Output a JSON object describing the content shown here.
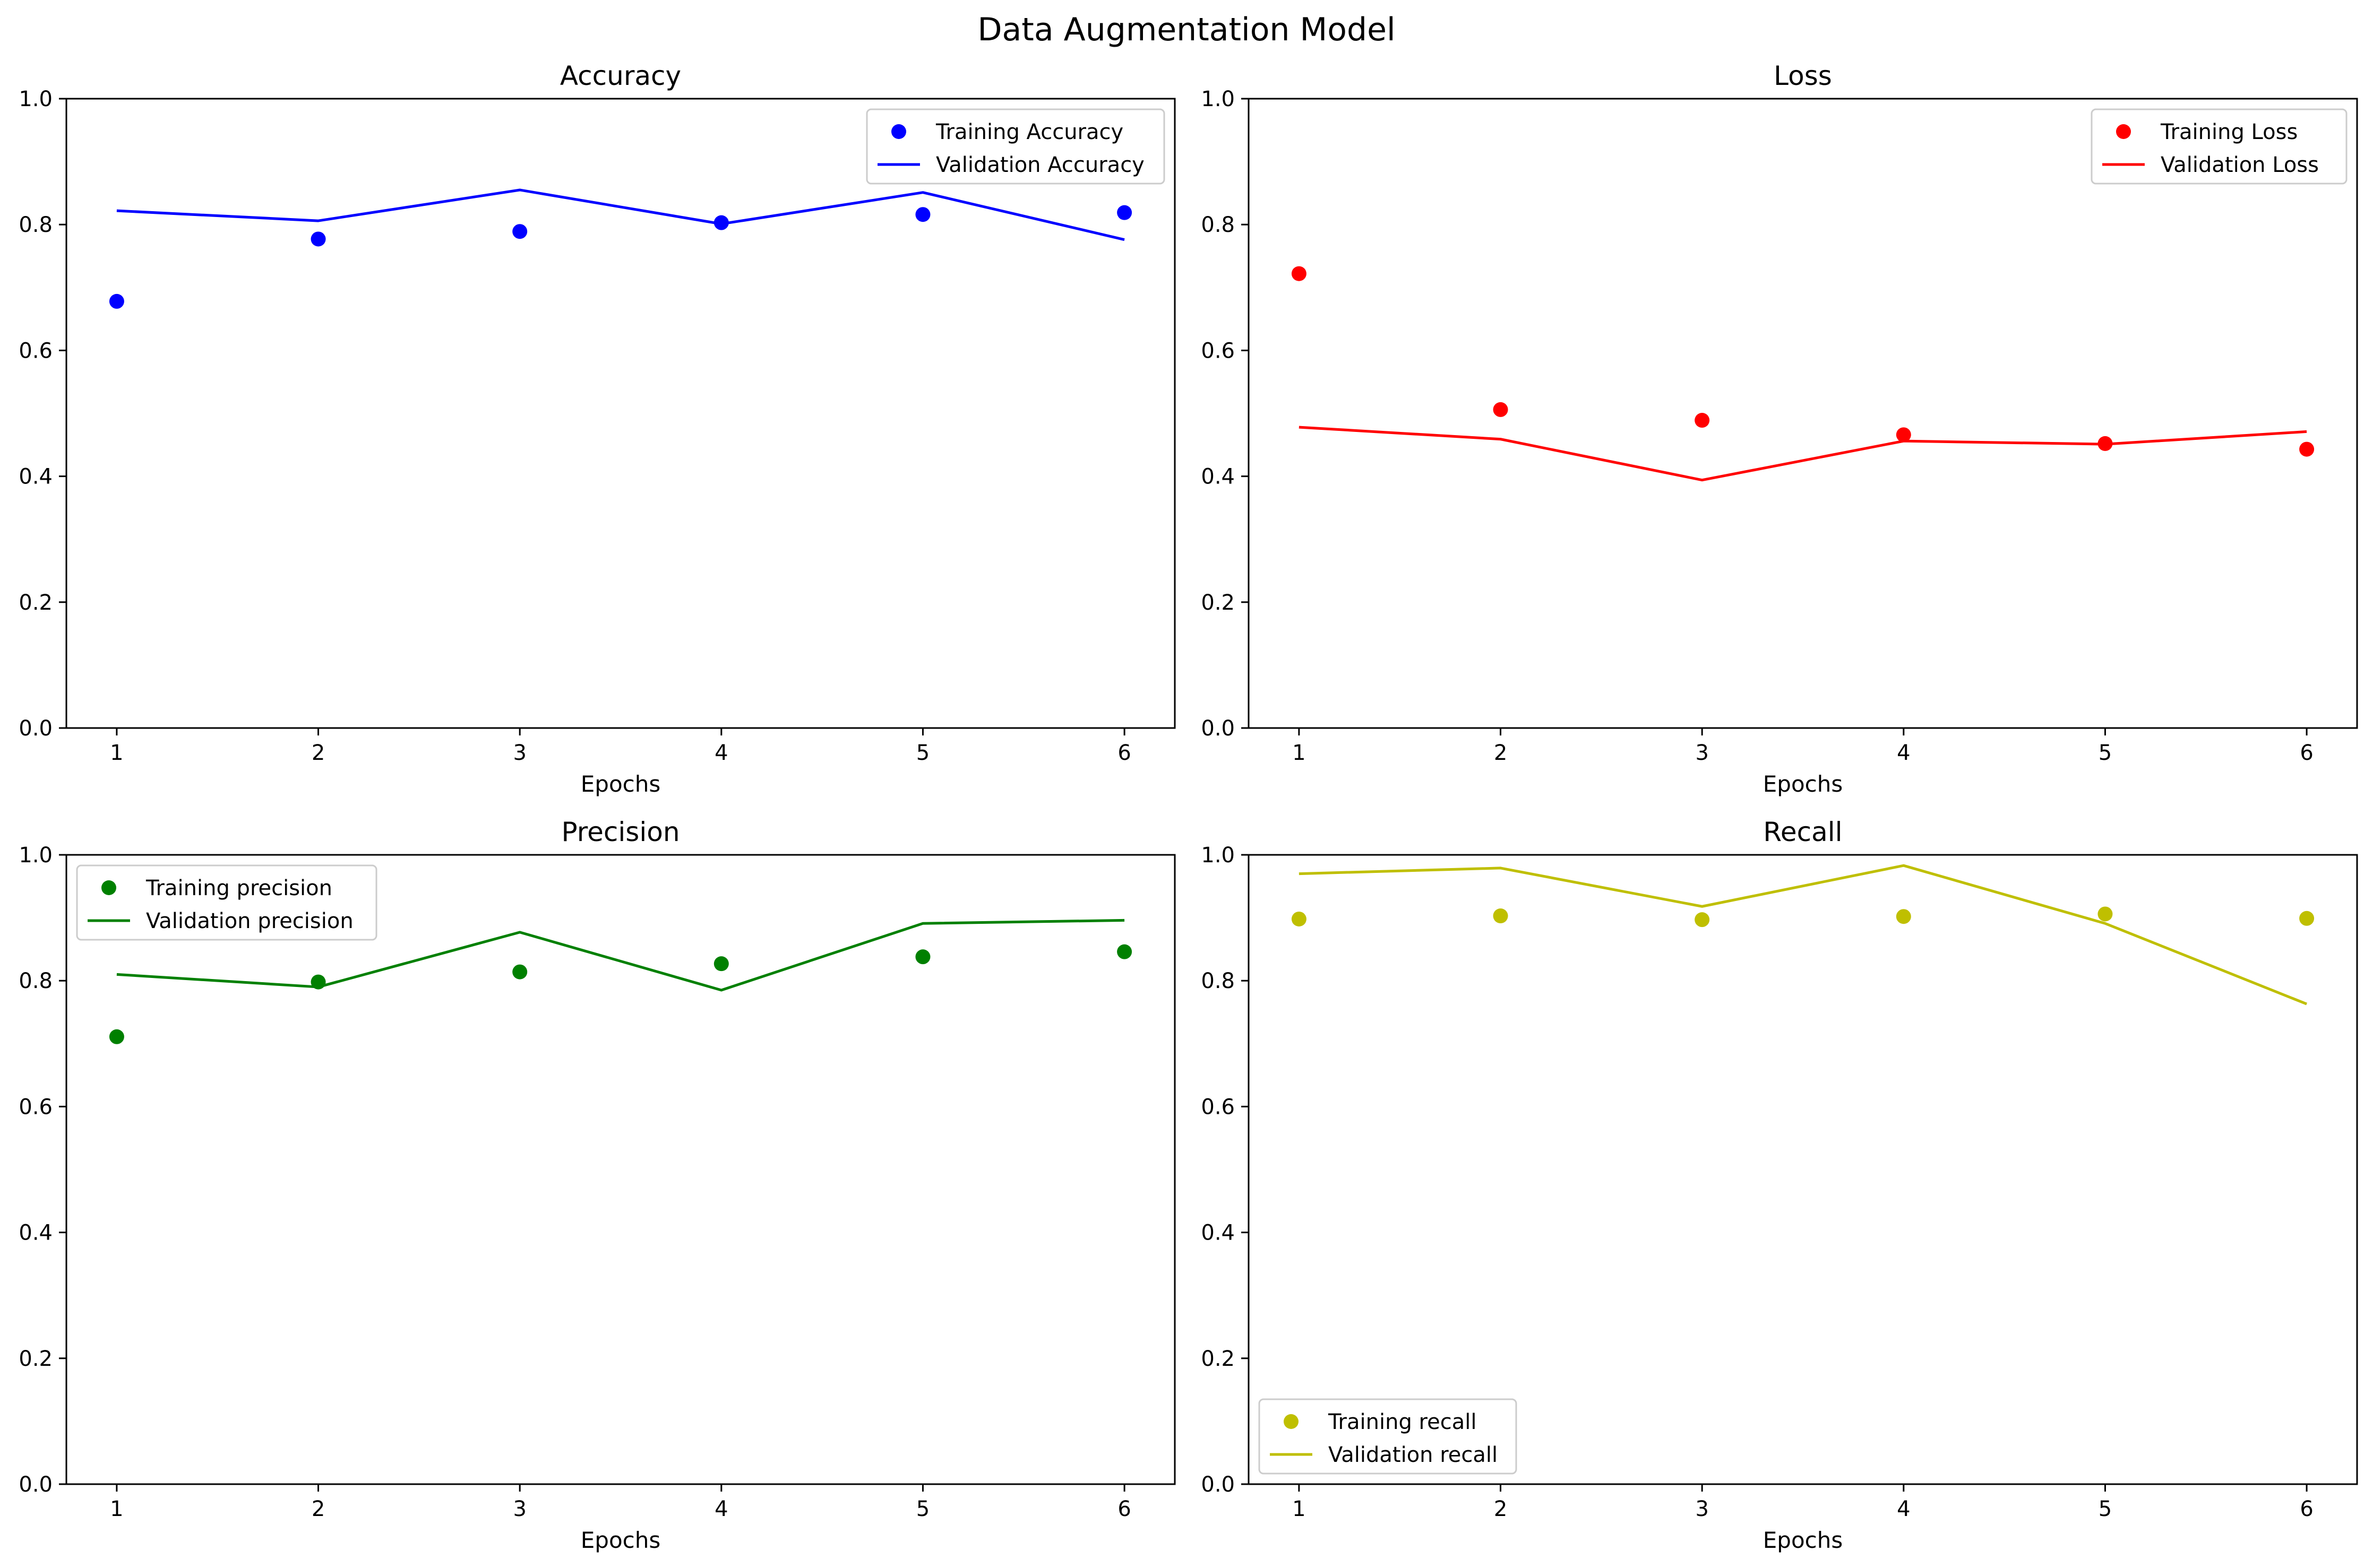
{
  "figure": {
    "title": "Data Augmentation Model"
  },
  "chart_data": [
    {
      "type": "line",
      "title": "Accuracy",
      "xlabel": "Epochs",
      "ylabel": "",
      "x": [
        1,
        2,
        3,
        4,
        5,
        6
      ],
      "xlim": [
        0.75,
        6.25
      ],
      "ylim": [
        0.0,
        1.0
      ],
      "yticks": [
        "0.0",
        "0.2",
        "0.4",
        "0.6",
        "0.8",
        "1.0"
      ],
      "xticks": [
        "1",
        "2",
        "3",
        "4",
        "5",
        "6"
      ],
      "grid": false,
      "legend_position": "top-right",
      "color": "#0000ff",
      "series": [
        {
          "name": "Training Accuracy",
          "style": "markers",
          "values": [
            0.678,
            0.777,
            0.789,
            0.803,
            0.816,
            0.819
          ]
        },
        {
          "name": "Validation Accuracy",
          "style": "line",
          "values": [
            0.822,
            0.806,
            0.855,
            0.801,
            0.851,
            0.776
          ]
        }
      ]
    },
    {
      "type": "line",
      "title": "Loss",
      "xlabel": "Epochs",
      "ylabel": "",
      "x": [
        1,
        2,
        3,
        4,
        5,
        6
      ],
      "xlim": [
        0.75,
        6.25
      ],
      "ylim": [
        0.0,
        1.0
      ],
      "yticks": [
        "0.0",
        "0.2",
        "0.4",
        "0.6",
        "0.8",
        "1.0"
      ],
      "xticks": [
        "1",
        "2",
        "3",
        "4",
        "5",
        "6"
      ],
      "grid": false,
      "legend_position": "top-right",
      "color": "#ff0000",
      "series": [
        {
          "name": "Training Loss",
          "style": "markers",
          "values": [
            0.722,
            0.506,
            0.489,
            0.466,
            0.452,
            0.443
          ]
        },
        {
          "name": "Validation Loss",
          "style": "line",
          "values": [
            0.478,
            0.459,
            0.394,
            0.456,
            0.451,
            0.471
          ]
        }
      ]
    },
    {
      "type": "line",
      "title": "Precision",
      "xlabel": "Epochs",
      "ylabel": "",
      "x": [
        1,
        2,
        3,
        4,
        5,
        6
      ],
      "xlim": [
        0.75,
        6.25
      ],
      "ylim": [
        0.0,
        1.0
      ],
      "yticks": [
        "0.0",
        "0.2",
        "0.4",
        "0.6",
        "0.8",
        "1.0"
      ],
      "xticks": [
        "1",
        "2",
        "3",
        "4",
        "5",
        "6"
      ],
      "grid": false,
      "legend_position": "top-left",
      "color": "#008000",
      "series": [
        {
          "name": "Training precision",
          "style": "markers",
          "values": [
            0.711,
            0.798,
            0.814,
            0.827,
            0.838,
            0.846
          ]
        },
        {
          "name": "Validation precision",
          "style": "line",
          "values": [
            0.81,
            0.79,
            0.877,
            0.785,
            0.891,
            0.896
          ]
        }
      ]
    },
    {
      "type": "line",
      "title": "Recall",
      "xlabel": "Epochs",
      "ylabel": "",
      "x": [
        1,
        2,
        3,
        4,
        5,
        6
      ],
      "xlim": [
        0.75,
        6.25
      ],
      "ylim": [
        0.0,
        1.0
      ],
      "yticks": [
        "0.0",
        "0.2",
        "0.4",
        "0.6",
        "0.8",
        "1.0"
      ],
      "xticks": [
        "1",
        "2",
        "3",
        "4",
        "5",
        "6"
      ],
      "grid": false,
      "legend_position": "bottom-left",
      "color": "#bfbf00",
      "series": [
        {
          "name": "Training recall",
          "style": "markers",
          "values": [
            0.898,
            0.903,
            0.897,
            0.902,
            0.906,
            0.899
          ]
        },
        {
          "name": "Validation recall",
          "style": "line",
          "values": [
            0.97,
            0.979,
            0.918,
            0.983,
            0.891,
            0.763
          ]
        }
      ]
    }
  ]
}
